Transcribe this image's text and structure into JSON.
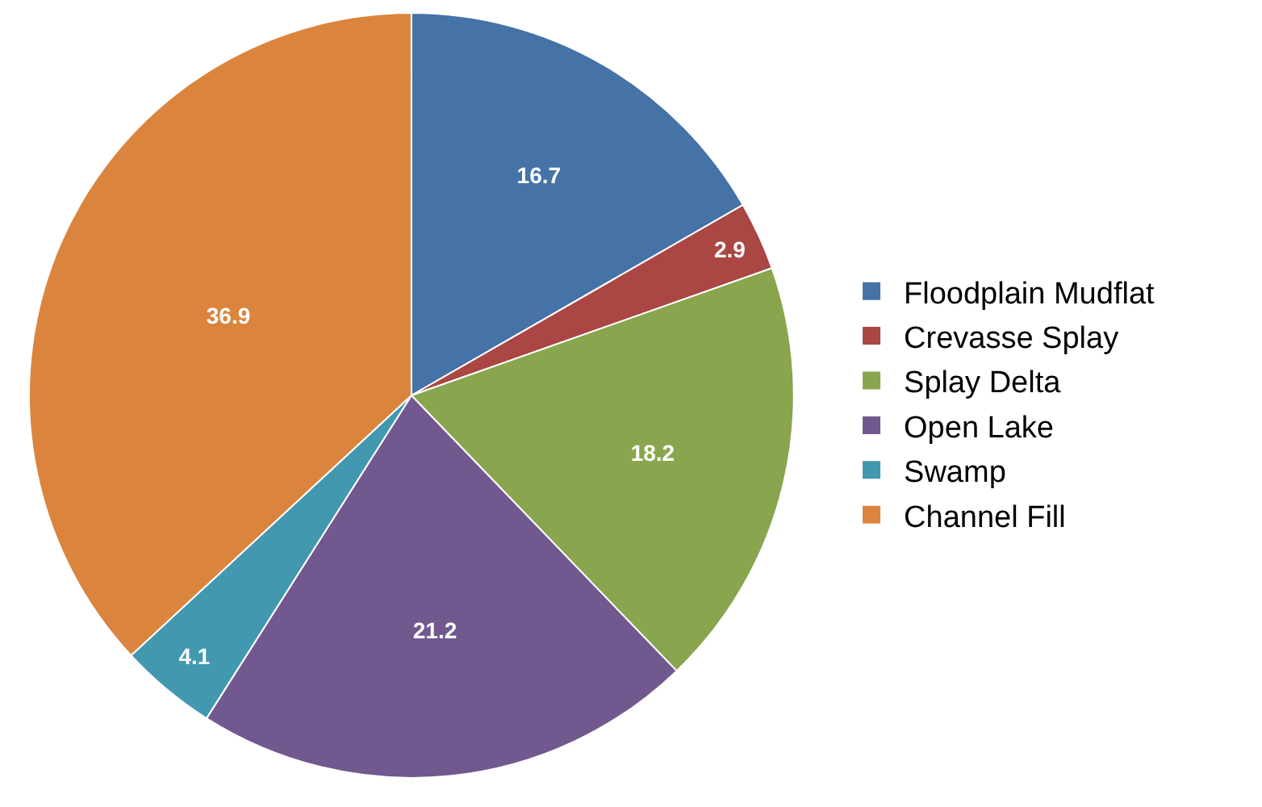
{
  "chart_data": {
    "type": "pie",
    "categories": [
      "Floodplain Mudflat",
      "Crevasse Splay",
      "Splay Delta",
      "Open Lake",
      "Swamp",
      "Channel Fill"
    ],
    "values": [
      16.7,
      2.9,
      18.2,
      21.2,
      4.1,
      36.9
    ],
    "colors": [
      "#4572a7",
      "#aa4643",
      "#89a54e",
      "#71588f",
      "#4198af",
      "#db843d"
    ],
    "data_labels": true,
    "legend": "right"
  }
}
